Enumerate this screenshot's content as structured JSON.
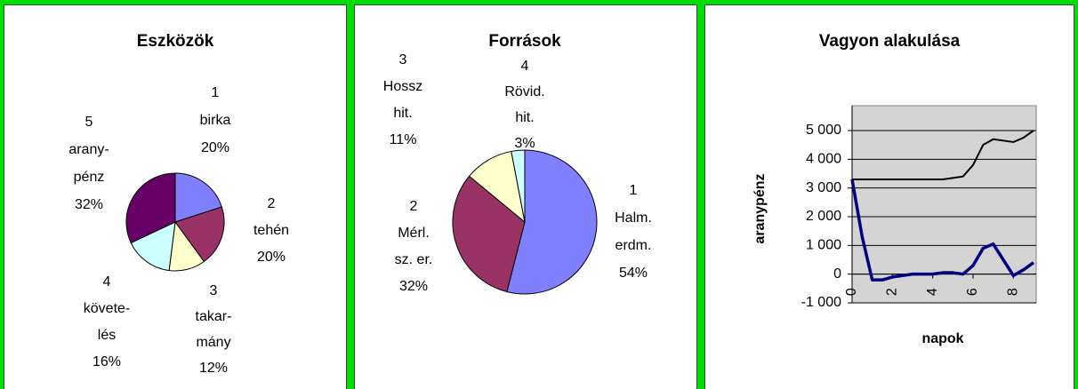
{
  "chart_data": [
    {
      "type": "pie",
      "title": "Eszközök",
      "categories": [
        [
          "1",
          "birka"
        ],
        [
          "2",
          "tehén"
        ],
        [
          "3",
          "takar-",
          "mány"
        ],
        [
          "4",
          "követe-",
          "lés"
        ],
        [
          "5",
          "arany-",
          "pénz"
        ]
      ],
      "values": [
        20,
        20,
        12,
        16,
        32
      ],
      "value_labels": [
        "20%",
        "20%",
        "12%",
        "16%",
        "32%"
      ],
      "colors": [
        "#8080ff",
        "#993366",
        "#ffffcc",
        "#ccffff",
        "#660066"
      ]
    },
    {
      "type": "pie",
      "title": "Források",
      "categories": [
        [
          "1",
          "Halm.",
          "erdm."
        ],
        [
          "2",
          "Mérl.",
          "sz. er."
        ],
        [
          "3",
          "Hossz",
          "hit."
        ],
        [
          "4",
          "Rövid.",
          "hit."
        ]
      ],
      "values": [
        54,
        32,
        11,
        3
      ],
      "value_labels": [
        "54%",
        "32%",
        "11%",
        "3%"
      ],
      "colors": [
        "#8080ff",
        "#993366",
        "#ffffcc",
        "#ccffff"
      ]
    },
    {
      "type": "line",
      "title": "Vagyon alakulása",
      "x_label": "napok",
      "y_label": "aranypénz",
      "x": [
        0,
        0.5,
        1,
        1.5,
        2,
        2.5,
        3,
        3.5,
        4,
        4.5,
        5,
        5.5,
        6,
        6.5,
        7,
        7.5,
        8,
        8.5,
        9
      ],
      "series": [
        {
          "color": "#000000",
          "values": [
            3300,
            3300,
            3300,
            3300,
            3300,
            3300,
            3300,
            3300,
            3300,
            3300,
            3350,
            3400,
            3800,
            4500,
            4700,
            4650,
            4600,
            4750,
            5000
          ]
        },
        {
          "color": "#000080",
          "values": [
            3300,
            1300,
            -200,
            -200,
            -100,
            -50,
            0,
            0,
            0,
            50,
            50,
            0,
            300,
            900,
            1050,
            500,
            -50,
            150,
            400
          ]
        }
      ],
      "xlim": [
        0,
        9
      ],
      "xticks": [
        0,
        2,
        4,
        6,
        8
      ],
      "ylim": [
        -1000,
        5000
      ],
      "yticks": [
        {
          "value": -1000,
          "label": "-1 000"
        },
        0,
        {
          "value": 1000,
          "label": "1 000"
        },
        {
          "value": 2000,
          "label": "2 000"
        },
        {
          "value": 3000,
          "label": "3 000"
        },
        {
          "value": 4000,
          "label": "4 000"
        },
        {
          "value": 5000,
          "label": "5 000"
        }
      ],
      "grid": true
    }
  ]
}
